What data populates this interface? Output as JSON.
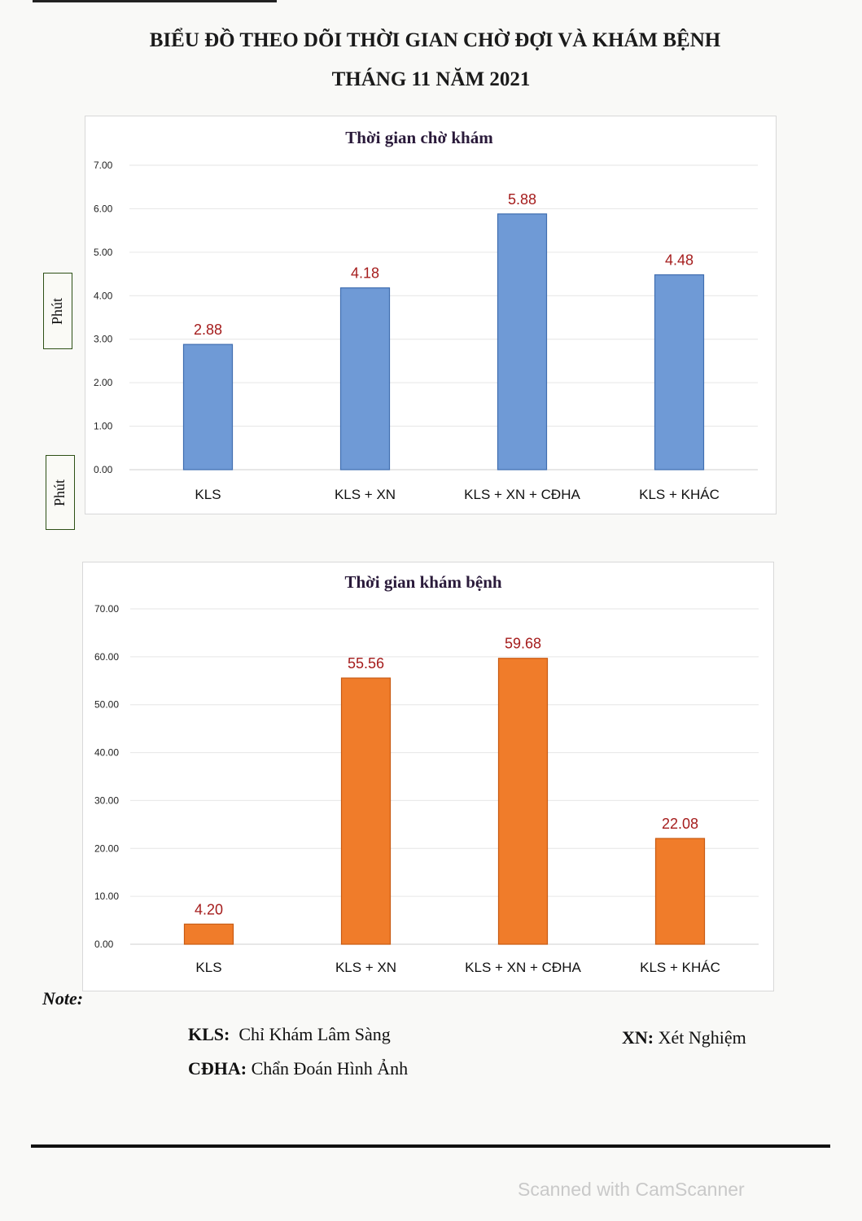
{
  "title_line1": "BIỂU ĐỒ THEO DÕI THỜI GIAN CHỜ ĐỢI VÀ KHÁM BỆNH",
  "title_line2": "THÁNG 11 NĂM 2021",
  "unit_label": "Phút",
  "chart_data": [
    {
      "type": "bar",
      "title": "Thời gian chờ khám",
      "categories": [
        "KLS",
        "KLS + XN",
        "KLS + XN + CĐHA",
        "KLS + KHÁC"
      ],
      "values": [
        2.88,
        4.18,
        5.88,
        4.48
      ],
      "value_labels": [
        "2.88",
        "4.18",
        "5.88",
        "4.48"
      ],
      "ylim": [
        0,
        7
      ],
      "yticks": [
        "0.00",
        "1.00",
        "2.00",
        "3.00",
        "4.00",
        "5.00",
        "6.00",
        "7.00"
      ],
      "ylabel": "Phút",
      "grid": true,
      "bar_color": "#6f9ad6",
      "bar_edge": "#3f6db0",
      "label_color": "#a51c1c"
    },
    {
      "type": "bar",
      "title": "Thời gian khám bệnh",
      "categories": [
        "KLS",
        "KLS + XN",
        "KLS + XN + CĐHA",
        "KLS + KHÁC"
      ],
      "values": [
        4.2,
        55.56,
        59.68,
        22.08
      ],
      "value_labels": [
        "4.20",
        "55.56",
        "59.68",
        "22.08"
      ],
      "ylim": [
        0,
        70
      ],
      "yticks": [
        "0.00",
        "10.00",
        "20.00",
        "30.00",
        "40.00",
        "50.00",
        "60.00",
        "70.00"
      ],
      "ylabel": "Phút",
      "grid": true,
      "bar_color": "#f07c2a",
      "bar_edge": "#c85a12",
      "label_color": "#a51c1c"
    }
  ],
  "note": {
    "title": "Note:",
    "items": [
      {
        "abbr": "KLS:",
        "text": "Chỉ Khám Lâm Sàng"
      },
      {
        "abbr": "XN:",
        "text": "Xét Nghiệm"
      },
      {
        "abbr": "CĐHA:",
        "text": "Chẩn Đoán Hình Ảnh"
      }
    ]
  },
  "watermark": "Scanned with CamScanner"
}
